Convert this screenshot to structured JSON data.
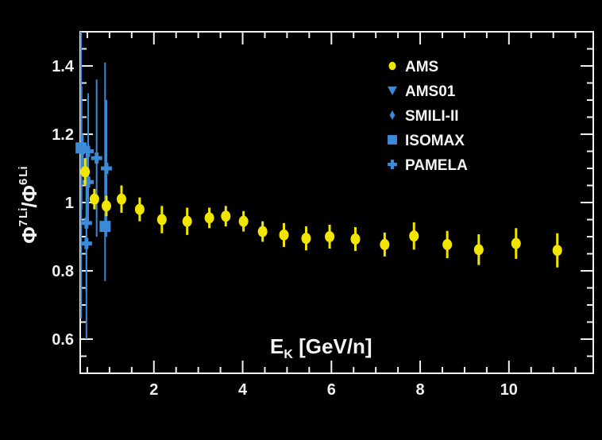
{
  "chart_data": {
    "type": "scatter",
    "title": "",
    "xlabel": "E_K [GeV/n]",
    "xlabel_main": "E",
    "xlabel_sub": "K",
    "xlabel_rest": " [GeV/n]",
    "ylabel": "Φ^7Li / Φ^6Li",
    "ylabel_parts": {
      "phi": "Φ",
      "num_sup": "7",
      "num_sub": "Li",
      "slash": "/",
      "den_sup": "6",
      "den_sub": "Li"
    },
    "xlim": [
      0.34,
      11.9
    ],
    "ylim": [
      0.5,
      1.5
    ],
    "xticks": [
      2,
      4,
      6,
      8,
      10
    ],
    "xtick_labels": [
      "2",
      "4",
      "6",
      "8",
      "10"
    ],
    "yticks": [
      0.6,
      0.8,
      1.0,
      1.2,
      1.4
    ],
    "ytick_labels": [
      "0.6",
      "0.8",
      "1",
      "1.2",
      "1.4"
    ],
    "grid": false,
    "legend_placement": "top-right",
    "background": "#000000",
    "series": [
      {
        "name": "AMS",
        "marker": "circle",
        "color": "#f2e600",
        "points": [
          {
            "x": 0.45,
            "y": 1.09,
            "err": 0.04
          },
          {
            "x": 0.66,
            "y": 1.01,
            "err": 0.03
          },
          {
            "x": 0.93,
            "y": 0.99,
            "err": 0.03
          },
          {
            "x": 1.27,
            "y": 1.01,
            "err": 0.04
          },
          {
            "x": 1.68,
            "y": 0.98,
            "err": 0.035
          },
          {
            "x": 2.18,
            "y": 0.95,
            "err": 0.04
          },
          {
            "x": 2.75,
            "y": 0.945,
            "err": 0.04
          },
          {
            "x": 3.25,
            "y": 0.955,
            "err": 0.03
          },
          {
            "x": 3.62,
            "y": 0.96,
            "err": 0.03
          },
          {
            "x": 4.02,
            "y": 0.945,
            "err": 0.03
          },
          {
            "x": 4.45,
            "y": 0.915,
            "err": 0.03
          },
          {
            "x": 4.93,
            "y": 0.905,
            "err": 0.035
          },
          {
            "x": 5.43,
            "y": 0.895,
            "err": 0.035
          },
          {
            "x": 5.96,
            "y": 0.9,
            "err": 0.035
          },
          {
            "x": 6.54,
            "y": 0.893,
            "err": 0.035
          },
          {
            "x": 7.2,
            "y": 0.877,
            "err": 0.035
          },
          {
            "x": 7.86,
            "y": 0.902,
            "err": 0.04
          },
          {
            "x": 8.61,
            "y": 0.877,
            "err": 0.04
          },
          {
            "x": 9.32,
            "y": 0.862,
            "err": 0.045
          },
          {
            "x": 10.16,
            "y": 0.88,
            "err": 0.045
          },
          {
            "x": 11.09,
            "y": 0.86,
            "err": 0.05
          }
        ]
      },
      {
        "name": "AMS01",
        "marker": "triangle-down",
        "color": "#3a8ad8",
        "points": [
          {
            "x": 0.4,
            "y": 1.15,
            "err": 0.05
          }
        ]
      },
      {
        "name": "SMILI-II",
        "marker": "diamond",
        "color": "#3a8ad8",
        "points": [
          {
            "x": 0.5,
            "y": 1.07,
            "err": 0.06
          }
        ]
      },
      {
        "name": "ISOMAX",
        "marker": "square",
        "color": "#3a8ad8",
        "points": [
          {
            "x": 0.36,
            "y": 1.16,
            "err": 0.5
          },
          {
            "x": 0.9,
            "y": 0.93,
            "err": 0.16,
            "err_up": 0.48
          }
        ]
      },
      {
        "name": "PAMELA",
        "marker": "cross",
        "color": "#3a8ad8",
        "points": [
          {
            "x": 0.37,
            "y": 1.16,
            "err": 0.18
          },
          {
            "x": 0.52,
            "y": 1.15,
            "err": 0.17
          },
          {
            "x": 0.71,
            "y": 1.13,
            "err": 0.23
          },
          {
            "x": 0.93,
            "y": 1.1,
            "err": 0.2
          },
          {
            "x": 0.52,
            "y": 1.06,
            "err": 0.12
          },
          {
            "x": 0.48,
            "y": 0.94,
            "err": 0.2
          },
          {
            "x": 0.48,
            "y": 0.88,
            "err": 0.28
          }
        ]
      }
    ]
  }
}
